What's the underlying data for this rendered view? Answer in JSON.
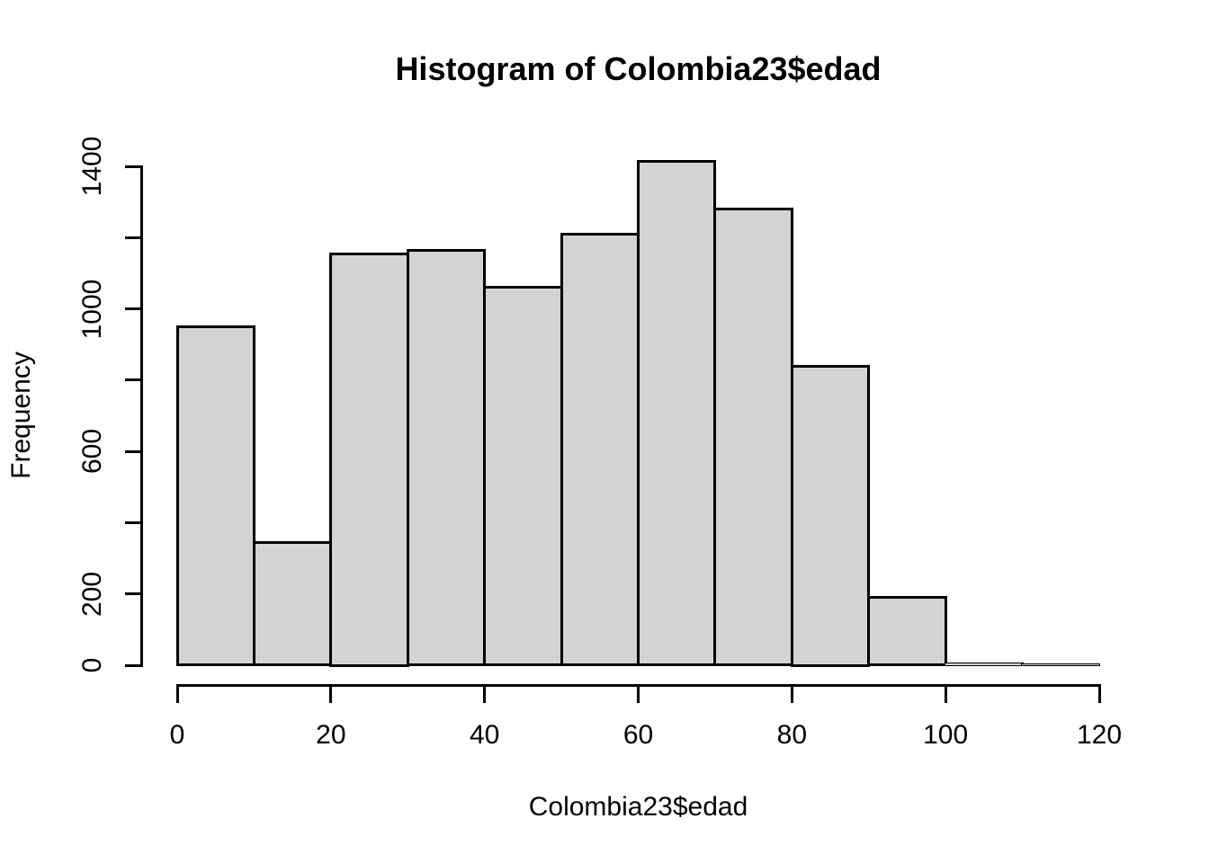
{
  "page": {
    "background_color": "#ffffff",
    "text_color": "#000000"
  },
  "chart_data": {
    "type": "bar",
    "subtype": "histogram",
    "title": "Histogram of Colombia23$edad",
    "xlabel": "Colombia23$edad",
    "ylabel": "Frequency",
    "bin_edges": [
      0,
      10,
      20,
      30,
      40,
      50,
      60,
      70,
      80,
      90,
      100,
      110,
      120
    ],
    "categories": [
      "0-10",
      "10-20",
      "20-30",
      "30-40",
      "40-50",
      "50-60",
      "60-70",
      "70-80",
      "80-90",
      "90-100",
      "100-110",
      "110-120"
    ],
    "values": [
      950,
      345,
      1155,
      1165,
      1060,
      1210,
      1415,
      1280,
      840,
      190,
      5,
      2
    ],
    "xlim": [
      0,
      120
    ],
    "ylim": [
      0,
      1400
    ],
    "x_ticks": [
      0,
      20,
      40,
      60,
      80,
      100,
      120
    ],
    "x_tick_labels": [
      "0",
      "20",
      "40",
      "60",
      "80",
      "100",
      "120"
    ],
    "y_ticks": [
      0,
      200,
      400,
      600,
      800,
      1000,
      1200,
      1400
    ],
    "y_tick_labels": [
      "0",
      "200",
      "",
      "600",
      "",
      "1000",
      "",
      "1400"
    ],
    "grid": false,
    "legend_position": "none",
    "bar_fill_color": "#d3d3d3",
    "bar_border_color": "#000000",
    "axis_color": "#000000"
  }
}
